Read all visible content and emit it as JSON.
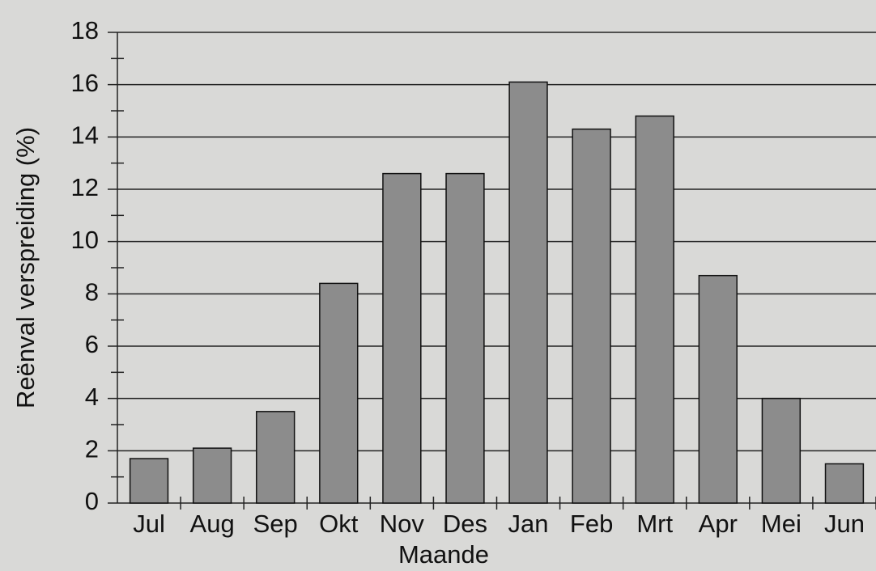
{
  "chart_data": {
    "type": "bar",
    "xlabel": "Maande",
    "ylabel": "Reënval verspreiding (%)",
    "categories": [
      "Jul",
      "Aug",
      "Sep",
      "Okt",
      "Nov",
      "Des",
      "Jan",
      "Feb",
      "Mrt",
      "Apr",
      "Mei",
      "Jun"
    ],
    "values": [
      1.7,
      2.1,
      3.5,
      8.4,
      12.6,
      12.6,
      16.1,
      14.3,
      14.8,
      8.7,
      4.0,
      1.5
    ],
    "color": "#8c8c8c",
    "ylim": [
      0,
      18
    ],
    "yticks": [
      0,
      2,
      4,
      6,
      8,
      10,
      12,
      14,
      16,
      18
    ],
    "grid": true
  }
}
